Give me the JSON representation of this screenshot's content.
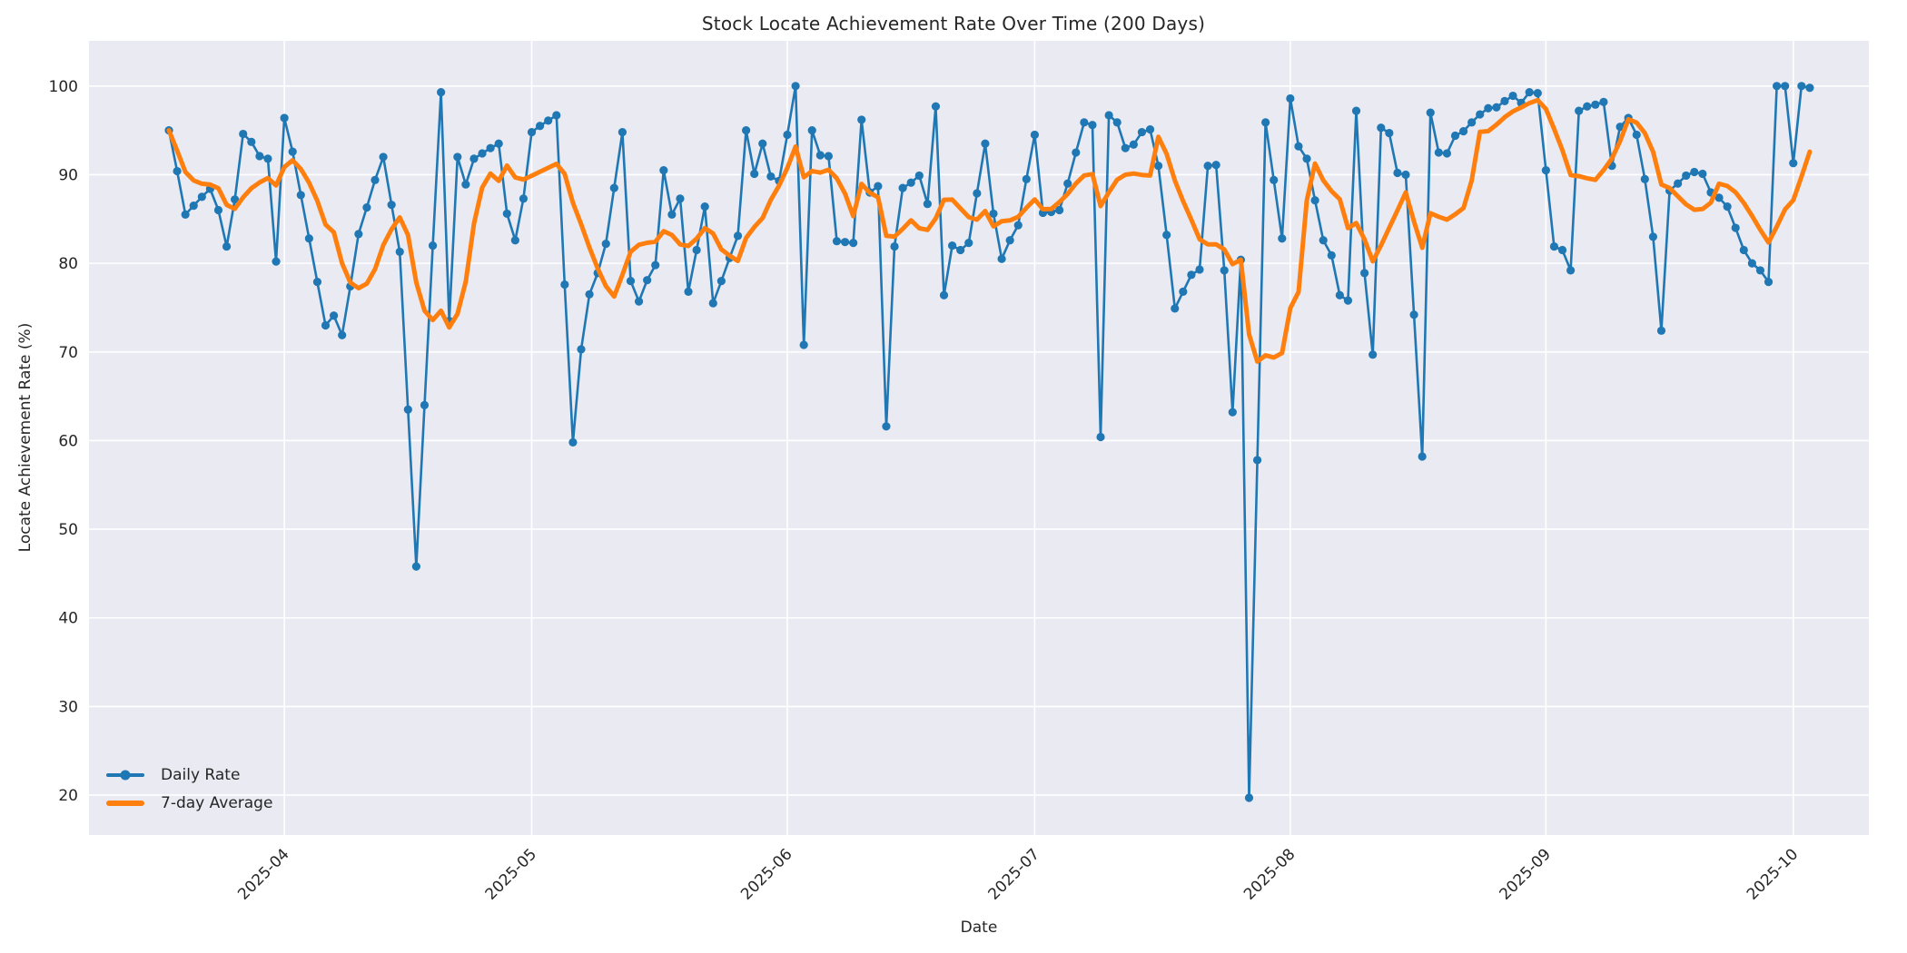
{
  "chart_data": {
    "type": "line",
    "title": "Stock Locate Achievement Rate Over Time (200 Days)",
    "xlabel": "Date",
    "ylabel": "Locate Achievement Rate (%)",
    "x_start_date": "2025-03-18",
    "num_days": 200,
    "x_tick_labels": [
      "2025-04",
      "2025-05",
      "2025-06",
      "2025-07",
      "2025-08",
      "2025-09",
      "2025-10"
    ],
    "x_tick_day_index": [
      14,
      44,
      75,
      105,
      136,
      167,
      197
    ],
    "y_ticks": [
      20,
      30,
      40,
      50,
      60,
      70,
      80,
      90,
      100
    ],
    "ylim": [
      15.5,
      105.1
    ],
    "grid": true,
    "legend_position": "lower left",
    "panel_color": "#eaeaf2",
    "grid_color": "#ffffff",
    "text_color": "#262626",
    "series": [
      {
        "name": "Daily Rate",
        "color": "#1f77b4",
        "marker": "circle",
        "line_width": 2.6,
        "values": [
          95.0,
          90.4,
          85.5,
          86.5,
          87.5,
          88.4,
          86.0,
          81.9,
          87.2,
          94.6,
          93.7,
          92.1,
          91.8,
          80.2,
          96.4,
          92.6,
          87.7,
          82.8,
          77.9,
          73.0,
          74.1,
          71.9,
          77.4,
          83.3,
          86.3,
          89.4,
          92.0,
          86.6,
          81.3,
          63.5,
          45.8,
          64.0,
          82.0,
          99.3,
          73.5,
          92.0,
          88.9,
          91.8,
          92.4,
          93.0,
          93.5,
          85.6,
          82.6,
          87.3,
          94.8,
          95.5,
          96.1,
          96.7,
          77.6,
          59.8,
          70.3,
          76.5,
          78.9,
          82.2,
          88.5,
          94.8,
          78.0,
          75.7,
          78.1,
          79.8,
          90.5,
          85.5,
          87.3,
          76.8,
          81.5,
          86.4,
          75.5,
          78.0,
          80.6,
          83.1,
          95.0,
          90.1,
          93.5,
          89.8,
          89.3,
          94.5,
          100.0,
          70.8,
          95.0,
          92.2,
          92.1,
          82.5,
          82.4,
          82.3,
          96.2,
          88.0,
          88.7,
          61.6,
          81.9,
          88.5,
          89.1,
          89.9,
          86.7,
          97.7,
          76.4,
          82.0,
          81.5,
          82.3,
          87.9,
          93.5,
          85.6,
          80.5,
          82.6,
          84.3,
          89.5,
          94.5,
          85.7,
          85.8,
          86.0,
          89.0,
          92.5,
          95.9,
          95.6,
          60.4,
          96.7,
          95.9,
          93.0,
          93.4,
          94.8,
          95.1,
          91.0,
          83.2,
          74.9,
          76.8,
          78.7,
          79.3,
          91.0,
          91.1,
          79.2,
          63.2,
          80.4,
          19.7,
          57.8,
          95.9,
          89.4,
          82.8,
          98.6,
          93.2,
          91.8,
          87.1,
          82.6,
          80.9,
          76.4,
          75.8,
          97.2,
          78.9,
          69.7,
          95.3,
          94.7,
          90.2,
          90.0,
          74.2,
          58.2,
          97.0,
          92.5,
          92.4,
          94.4,
          94.9,
          95.9,
          96.8,
          97.5,
          97.6,
          98.3,
          98.9,
          98.1,
          99.3,
          99.2,
          90.5,
          81.9,
          81.5,
          79.2,
          97.2,
          97.7,
          97.9,
          98.2,
          91.0,
          95.4,
          96.4,
          94.5,
          89.5,
          83.0,
          72.4,
          88.2,
          89.0,
          89.9,
          90.3,
          90.1,
          88.0,
          87.4,
          86.4,
          84.0,
          81.5,
          80.0,
          79.2,
          77.9,
          100.0,
          100.0,
          91.3,
          100.0,
          99.8
        ]
      },
      {
        "name": "7-day Average",
        "color": "#ff7f0e",
        "marker": "none",
        "line_width": 5,
        "derived": "rolling_mean_window_7_min_periods_1"
      }
    ]
  }
}
